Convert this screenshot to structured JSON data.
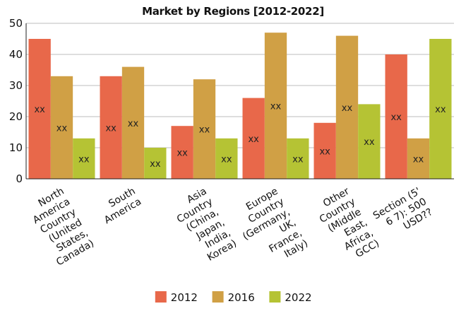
{
  "chart_data": {
    "type": "bar",
    "title": "Market by Regions [2012-2022]",
    "categories": [
      [
        "North",
        "America",
        "Country",
        "(United",
        "States,",
        "Canada)"
      ],
      [
        "South",
        "America"
      ],
      [
        "Asia",
        "Country",
        "(China,",
        "Japan,",
        "India,",
        "Korea)"
      ],
      [
        "Europe",
        "Country",
        "(Germany,",
        "UK,",
        "France,",
        "Italy)"
      ],
      [
        "Other",
        "Country",
        "(Middle",
        "East,",
        "Africa,",
        "GCC)"
      ],
      [
        "Section (5'",
        "6 7): 500",
        "USD??"
      ]
    ],
    "series": [
      {
        "name": "2012",
        "color": "#e8684a",
        "values": [
          45,
          33,
          17,
          26,
          18,
          40
        ]
      },
      {
        "name": "2016",
        "color": "#d0a045",
        "values": [
          33,
          36,
          32,
          47,
          46,
          13
        ]
      },
      {
        "name": "2022",
        "color": "#b5c334",
        "values": [
          13,
          10,
          13,
          13,
          24,
          45
        ]
      }
    ],
    "data_label": "xx",
    "ylim": [
      0,
      50
    ],
    "yticks": [
      0,
      10,
      20,
      30,
      40,
      50
    ],
    "grid": true,
    "legend_position": "bottom"
  }
}
